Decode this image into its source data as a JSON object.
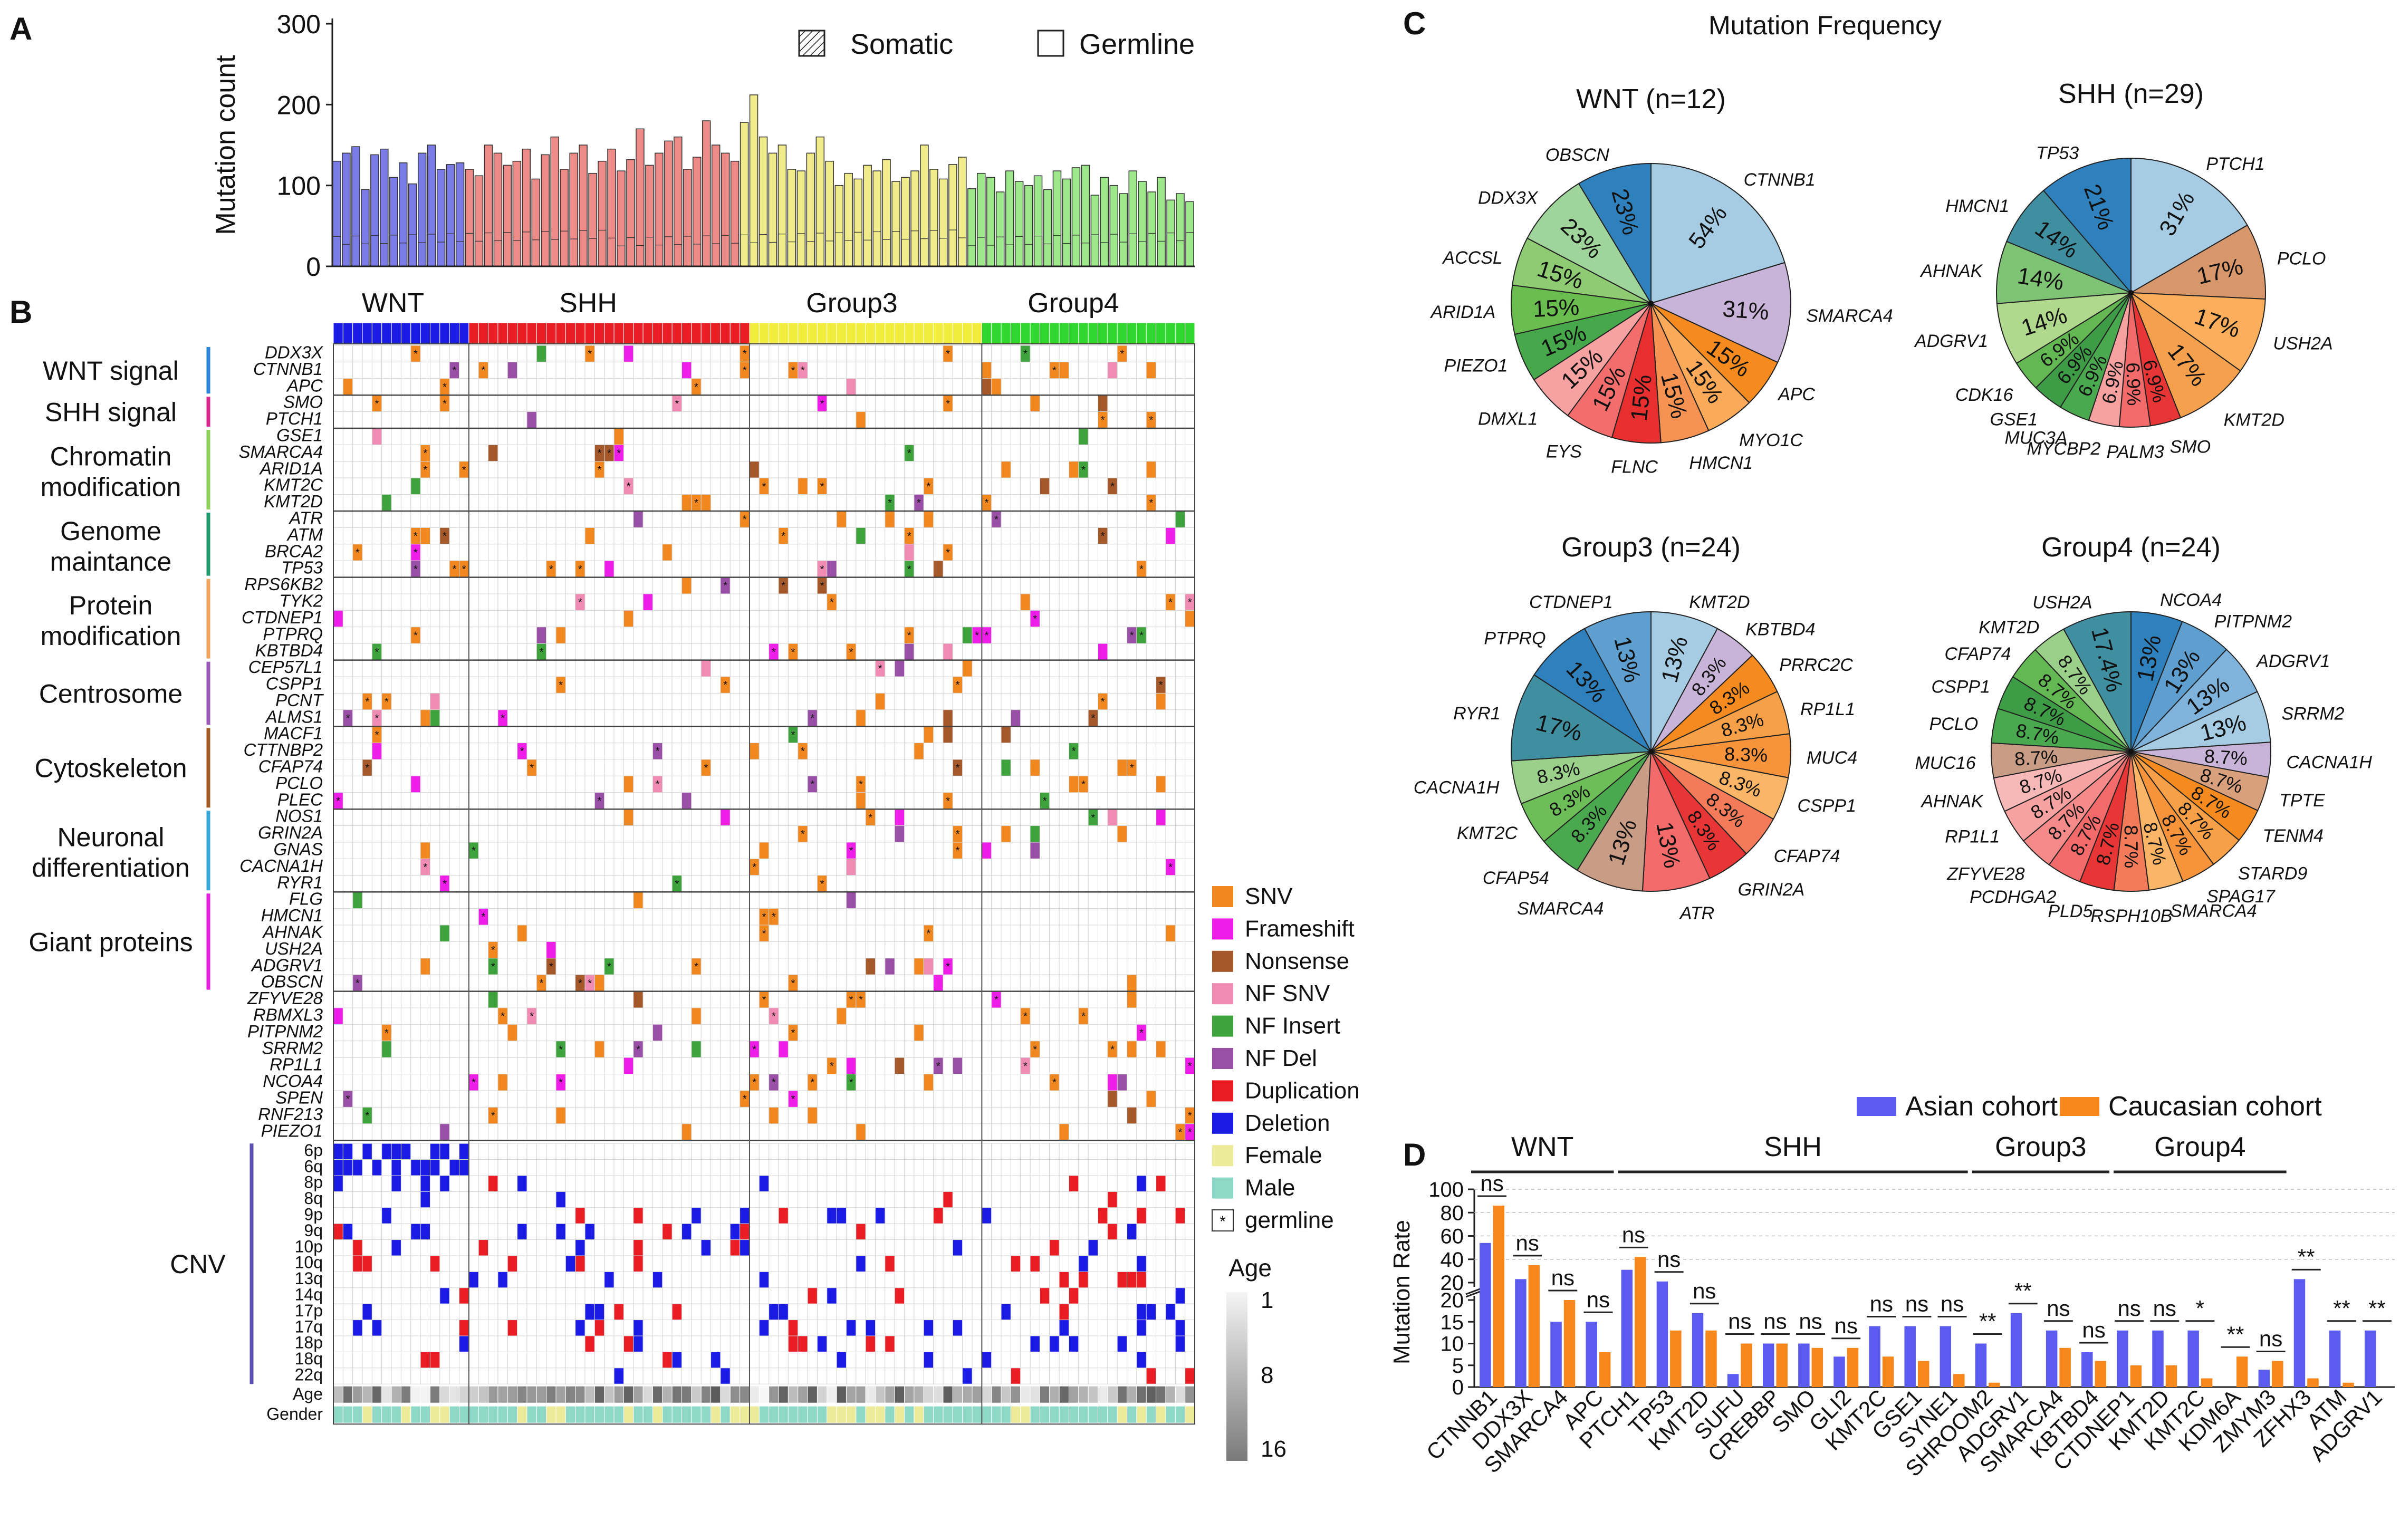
{
  "chart_data": [
    {
      "panel": "A",
      "type": "bar",
      "ylabel": "Mutation count",
      "yticks": [
        0,
        100,
        200,
        300
      ],
      "ylim": [
        0,
        300
      ],
      "legend": [
        "Somatic",
        "Germline"
      ],
      "groups": [
        {
          "name": "WNT",
          "color": "#7b7be6",
          "values": [
            130,
            140,
            148,
            95,
            138,
            145,
            110,
            128,
            102,
            140,
            150,
            120,
            126,
            128
          ]
        },
        {
          "name": "SHH",
          "color": "#ec8b87",
          "values": [
            120,
            112,
            150,
            140,
            125,
            130,
            145,
            108,
            138,
            160,
            120,
            140,
            150,
            115,
            130,
            145,
            118,
            132,
            170,
            125,
            140,
            155,
            160,
            120,
            135,
            180,
            150,
            140,
            130
          ]
        },
        {
          "name": "Group3",
          "color": "#f0ec8c",
          "values": [
            178,
            212,
            160,
            140,
            150,
            120,
            118,
            140,
            160,
            130,
            100,
            115,
            108,
            125,
            118,
            132,
            105,
            110,
            118,
            150,
            120,
            108,
            126,
            135
          ]
        },
        {
          "name": "Group4",
          "color": "#9ee88c",
          "values": [
            96,
            115,
            110,
            92,
            118,
            105,
            100,
            112,
            95,
            118,
            108,
            122,
            125,
            88,
            110,
            100,
            90,
            118,
            105,
            92,
            110,
            82,
            90,
            80
          ]
        }
      ]
    },
    {
      "panel": "B",
      "type": "heatmap",
      "group_labels": [
        "WNT",
        "SHH",
        "Group3",
        "Group4"
      ],
      "categories": [
        {
          "name": "WNT signal",
          "genes": [
            "DDX3X",
            "CTNNB1",
            "APC"
          ]
        },
        {
          "name": "SHH signal",
          "genes": [
            "SMO",
            "PTCH1"
          ]
        },
        {
          "name": "Chromatin modification",
          "genes": [
            "GSE1",
            "SMARCA4",
            "ARID1A",
            "KMT2C",
            "KMT2D"
          ]
        },
        {
          "name": "Genome maintance",
          "genes": [
            "ATR",
            "ATM",
            "BRCA2",
            "TP53"
          ]
        },
        {
          "name": "Protein modification",
          "genes": [
            "RPS6KB2",
            "TYK2",
            "CTDNEP1",
            "PTPRQ",
            "KBTBD4"
          ]
        },
        {
          "name": "Centrosome",
          "genes": [
            "CEP57L1",
            "CSPP1",
            "PCNT",
            "ALMS1"
          ]
        },
        {
          "name": "Cytoskeleton",
          "genes": [
            "MACF1",
            "CTTNBP2",
            "CFAP74",
            "PCLO",
            "PLEC"
          ]
        },
        {
          "name": "Neuronal differentiation",
          "genes": [
            "NOS1",
            "GRIN2A",
            "GNAS",
            "CACNA1H",
            "RYR1"
          ]
        },
        {
          "name": "Giant proteins",
          "genes": [
            "FLG",
            "HMCN1",
            "AHNAK",
            "USH2A",
            "ADGRV1",
            "OBSCN"
          ]
        },
        {
          "name": "",
          "genes": [
            "ZFYVE28",
            "RBMXL3",
            "PITPNM2",
            "SRRM2",
            "RP1L1",
            "NCOA4",
            "SPEN",
            "RNF213",
            "PIEZO1"
          ]
        }
      ],
      "cnv_label": "CNV",
      "cnv_rows": [
        "6p",
        "6q",
        "8p",
        "8q",
        "9p",
        "9q",
        "10p",
        "10q",
        "13q",
        "14q",
        "17p",
        "17q",
        "18p",
        "18q",
        "22q"
      ],
      "annotation_rows": [
        "Age",
        "Gender"
      ],
      "legend": [
        {
          "label": "SNV",
          "color": "#f0871f"
        },
        {
          "label": "Frameshift",
          "color": "#ee1ee8"
        },
        {
          "label": "Nonsense",
          "color": "#a5582a"
        },
        {
          "label": "NF SNV",
          "color": "#f08cb4"
        },
        {
          "label": "NF Insert",
          "color": "#3ea33c"
        },
        {
          "label": "NF Del",
          "color": "#9a4fa6"
        },
        {
          "label": "Duplication",
          "color": "#ea1c24"
        },
        {
          "label": "Deletion",
          "color": "#1b1be6"
        },
        {
          "label": "Female",
          "color": "#eceb9a"
        },
        {
          "label": "Male",
          "color": "#8ed8c8"
        },
        {
          "label": "germline",
          "color": "#ffffff"
        }
      ],
      "age_scale": {
        "title": "Age",
        "ticks": [
          "1",
          "8",
          "16"
        ]
      }
    },
    {
      "panel": "C",
      "type": "pie",
      "title": "Mutation Frequency",
      "pies": [
        {
          "title": "WNT (n=12)",
          "title_color": "#2b5be0",
          "slices": [
            {
              "label": "CTNNB1",
              "value": 54,
              "text": "54%",
              "color": "#a6cce3"
            },
            {
              "label": "SMARCA4",
              "value": 31,
              "text": "31%",
              "color": "#c8b4d8"
            },
            {
              "label": "APC",
              "value": 15,
              "text": "15%",
              "color": "#f58a1e"
            },
            {
              "label": "MYO1C",
              "value": 15,
              "text": "15%",
              "color": "#fbaa5a"
            },
            {
              "label": "HMCN1",
              "value": 15,
              "text": "15%",
              "color": "#f79352"
            },
            {
              "label": "FLNC",
              "value": 15,
              "text": "15%",
              "color": "#e82f2f"
            },
            {
              "label": "EYS",
              "value": 15,
              "text": "15%",
              "color": "#f46d6d"
            },
            {
              "label": "DMXL1",
              "value": 15,
              "text": "15%",
              "color": "#f7a2a2"
            },
            {
              "label": "PIEZO1",
              "value": 15,
              "text": "15%",
              "color": "#46a84b"
            },
            {
              "label": "ARID1A",
              "value": 15,
              "text": "15%",
              "color": "#6abd4f"
            },
            {
              "label": "ACCSL",
              "value": 15,
              "text": "15%",
              "color": "#8ecb73"
            },
            {
              "label": "DDX3X",
              "value": 23,
              "text": "23%",
              "color": "#9fd49a"
            },
            {
              "label": "OBSCN",
              "value": 23,
              "text": "23%",
              "color": "#2f81bd"
            }
          ]
        },
        {
          "title": "SHH (n=29)",
          "title_color": "#e02424",
          "slices": [
            {
              "label": "PTCH1",
              "value": 31,
              "text": "31%",
              "color": "#a6cce3"
            },
            {
              "label": "PCLO",
              "value": 17,
              "text": "17%",
              "color": "#d8976b"
            },
            {
              "label": "USH2A",
              "value": 17,
              "text": "17%",
              "color": "#fbae5c"
            },
            {
              "label": "KMT2D",
              "value": 17,
              "text": "17%",
              "color": "#f5a04d"
            },
            {
              "label": "SMO",
              "value": 6.9,
              "text": "6.9%",
              "color": "#e83535"
            },
            {
              "label": "PALM3",
              "value": 6.9,
              "text": "6.9%",
              "color": "#f26a6a"
            },
            {
              "label": "MYCBP2",
              "value": 6.9,
              "text": "6.9%",
              "color": "#f7a0a0"
            },
            {
              "label": "MUC3A",
              "value": 6.9,
              "text": "6.9%",
              "color": "#4aa84f"
            },
            {
              "label": "GSE1",
              "value": 6.9,
              "text": "6.9%",
              "color": "#3e9c47"
            },
            {
              "label": "CDK16",
              "value": 6.9,
              "text": "6.9%",
              "color": "#63b854"
            },
            {
              "label": "ADGRV1",
              "value": 14,
              "text": "14%",
              "color": "#b1d98e"
            },
            {
              "label": "AHNAK",
              "value": 14,
              "text": "14%",
              "color": "#7fc474"
            },
            {
              "label": "HMCN1",
              "value": 14,
              "text": "14%",
              "color": "#3f8fa0"
            },
            {
              "label": "TP53",
              "value": 21,
              "text": "21%",
              "color": "#2f81bd"
            }
          ]
        },
        {
          "title": "Group3 (n=24)",
          "title_color": "#e8b320",
          "slices": [
            {
              "label": "KMT2D",
              "value": 13,
              "text": "13%",
              "color": "#a6cce3"
            },
            {
              "label": "KBTBD4",
              "value": 8.3,
              "text": "8.3%",
              "color": "#c8b4d8"
            },
            {
              "label": "PRRC2C",
              "value": 8.3,
              "text": "8.3%",
              "color": "#f58a1e"
            },
            {
              "label": "RP1L1",
              "value": 8.3,
              "text": "8.3%",
              "color": "#f8a048"
            },
            {
              "label": "MUC4",
              "value": 8.3,
              "text": "8.3%",
              "color": "#f7933a"
            },
            {
              "label": "CSPP1",
              "value": 8.3,
              "text": "8.3%",
              "color": "#fbb566"
            },
            {
              "label": "CFAP74",
              "value": 8.3,
              "text": "8.3%",
              "color": "#f47b5a"
            },
            {
              "label": "GRIN2A",
              "value": 8.3,
              "text": "8.3%",
              "color": "#e83535"
            },
            {
              "label": "ATR",
              "value": 13,
              "text": "13%",
              "color": "#f26a6a"
            },
            {
              "label": "SMARCA4",
              "value": 13,
              "text": "13%",
              "color": "#c99c86"
            },
            {
              "label": "CFAP54",
              "value": 8.3,
              "text": "8.3%",
              "color": "#4aa84f"
            },
            {
              "label": "KMT2C",
              "value": 8.3,
              "text": "8.3%",
              "color": "#6dbd58"
            },
            {
              "label": "CACNA1H",
              "value": 8.3,
              "text": "8.3%",
              "color": "#9bd08a"
            },
            {
              "label": "RYR1",
              "value": 17,
              "text": "17%",
              "color": "#3f8fa0"
            },
            {
              "label": "PTPRQ",
              "value": 13,
              "text": "13%",
              "color": "#2f81bd"
            },
            {
              "label": "CTDNEP1",
              "value": 13,
              "text": "13%",
              "color": "#5e9fd0"
            }
          ]
        },
        {
          "title": "Group4 (n=24)",
          "title_color": "#2ea32e",
          "slices": [
            {
              "label": "NCOA4",
              "value": 13,
              "text": "13%",
              "color": "#2f81bd"
            },
            {
              "label": "PITPNM2",
              "value": 13,
              "text": "13%",
              "color": "#5e9fd0"
            },
            {
              "label": "ADGRV1",
              "value": 13,
              "text": "13%",
              "color": "#7fb3db"
            },
            {
              "label": "SRRM2",
              "value": 13,
              "text": "13%",
              "color": "#a6cce3"
            },
            {
              "label": "CACNA1H",
              "value": 8.7,
              "text": "8.7%",
              "color": "#c8b4d8"
            },
            {
              "label": "TPTE",
              "value": 8.7,
              "text": "8.7%",
              "color": "#d8a07c"
            },
            {
              "label": "TENM4",
              "value": 8.7,
              "text": "8.7%",
              "color": "#f58a1e"
            },
            {
              "label": "STARD9",
              "value": 8.7,
              "text": "8.7%",
              "color": "#f8a048"
            },
            {
              "label": "SPAG17",
              "value": 8.7,
              "text": "8.7%",
              "color": "#f7933a"
            },
            {
              "label": "SMARCA4",
              "value": 8.7,
              "text": "8.7%",
              "color": "#fbb566"
            },
            {
              "label": "RSPH10B",
              "value": 8.7,
              "text": "8.7%",
              "color": "#f47b5a"
            },
            {
              "label": "PLD5",
              "value": 8.7,
              "text": "8.7%",
              "color": "#e83535"
            },
            {
              "label": "PCDHGA2",
              "value": 8.7,
              "text": "8.7%",
              "color": "#f26a6a"
            },
            {
              "label": "ZFYVE28",
              "value": 8.7,
              "text": "8.7%",
              "color": "#f58a8a"
            },
            {
              "label": "RP1L1",
              "value": 8.7,
              "text": "8.7%",
              "color": "#f7a2a2"
            },
            {
              "label": "AHNAK",
              "value": 8.7,
              "text": "8.7%",
              "color": "#f7b8b8"
            },
            {
              "label": "MUC16",
              "value": 8.7,
              "text": "8.7%",
              "color": "#c99c86"
            },
            {
              "label": "PCLO",
              "value": 8.7,
              "text": "8.7%",
              "color": "#4aa84f"
            },
            {
              "label": "CSPP1",
              "value": 8.7,
              "text": "8.7%",
              "color": "#3e9c47"
            },
            {
              "label": "CFAP74",
              "value": 8.7,
              "text": "8.7%",
              "color": "#63b854"
            },
            {
              "label": "KMT2D",
              "value": 8.7,
              "text": "8.7%",
              "color": "#9bd08a"
            },
            {
              "label": "USH2A",
              "value": 17.4,
              "text": "17.4%",
              "color": "#3f8fa0"
            }
          ]
        }
      ]
    },
    {
      "panel": "D",
      "type": "bar",
      "ylabel": "Mutation Rate",
      "yticks_low": [
        0,
        5,
        10,
        15,
        20
      ],
      "yticks_high": [
        20,
        40,
        60,
        80,
        100
      ],
      "legend": [
        {
          "name": "Asian cohort",
          "color": "#5b5bef"
        },
        {
          "name": "Caucasian cohort",
          "color": "#f7861b"
        }
      ],
      "groups": [
        {
          "name": "WNT",
          "color": "#2b5be0",
          "from": 0,
          "to": 3
        },
        {
          "name": "SHH",
          "color": "#e02424",
          "from": 4,
          "to": 13
        },
        {
          "name": "Group3",
          "color": "#e8b320",
          "from": 14,
          "to": 17
        },
        {
          "name": "Group4",
          "color": "#2ea32e",
          "from": 18,
          "to": 22
        }
      ],
      "categories": [
        "CTNNB1",
        "DDX3X",
        "SMARCA4",
        "APC",
        "PTCH1",
        "TP53",
        "KMT2D",
        "SUFU",
        "CREBBP",
        "SMO",
        "GLI2",
        "KMT2C",
        "GSE1",
        "SYNE1",
        "SHROOM2",
        "ADGRV1",
        "SMARCA4",
        "KBTBD4",
        "CTDNEP1",
        "KMT2D",
        "KMT2C",
        "KDM6A",
        "ZMYM3",
        "ZFHX3",
        "ATM",
        "ADGRV1"
      ],
      "series": [
        {
          "name": "Asian cohort",
          "values": [
            54,
            23,
            15,
            15,
            31,
            21,
            17,
            3,
            10,
            10,
            7,
            14,
            14,
            14,
            10,
            17,
            13,
            8,
            13,
            13,
            13,
            0,
            4,
            23,
            13,
            13
          ]
        },
        {
          "name": "Caucasian cohort",
          "values": [
            86,
            35,
            20,
            8,
            42,
            13,
            13,
            10,
            10,
            9,
            9,
            7,
            6,
            3,
            1,
            0,
            9,
            6,
            5,
            5,
            2,
            7,
            6,
            2,
            1,
            0
          ]
        }
      ],
      "significance": [
        "ns",
        "ns",
        "ns",
        "ns",
        "ns",
        "ns",
        "ns",
        "ns",
        "ns",
        "ns",
        "ns",
        "ns",
        "ns",
        "ns",
        "**",
        "**",
        "ns",
        "ns",
        "ns",
        "ns",
        "*",
        "**",
        "ns",
        "**",
        "**",
        "**"
      ]
    }
  ]
}
